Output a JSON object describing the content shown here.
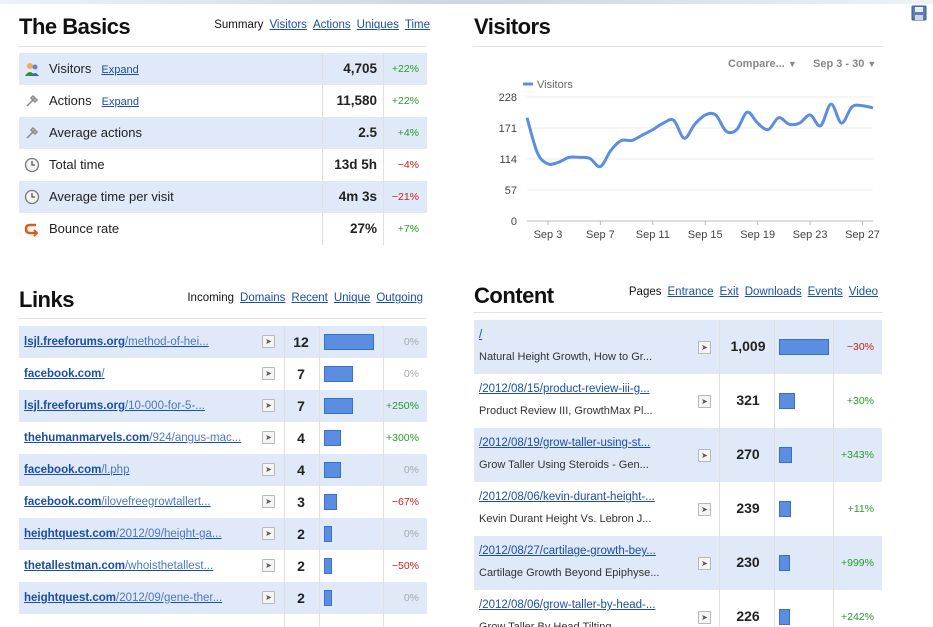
{
  "basics": {
    "title": "The Basics",
    "tabs": [
      {
        "label": "Summary",
        "active": true
      },
      {
        "label": "Visitors",
        "active": false
      },
      {
        "label": "Actions",
        "active": false
      },
      {
        "label": "Uniques",
        "active": false
      },
      {
        "label": "Time",
        "active": false
      }
    ],
    "rows": [
      {
        "label": "Visitors",
        "expand": "Expand",
        "value": "4,705",
        "change": "+22%",
        "icon": "visitors-icon"
      },
      {
        "label": "Actions",
        "expand": "Expand",
        "value": "11,580",
        "change": "+22%",
        "icon": "cursor-icon"
      },
      {
        "label": "Average actions",
        "expand": "",
        "value": "2.5",
        "change": "+4%",
        "icon": "cursor-icon"
      },
      {
        "label": "Total time",
        "expand": "",
        "value": "13d 5h",
        "change": "-4%",
        "icon": "clock-icon"
      },
      {
        "label": "Average time per visit",
        "expand": "",
        "value": "4m 3s",
        "change": "-21%",
        "icon": "clock-icon"
      },
      {
        "label": "Bounce rate",
        "expand": "",
        "value": "27%",
        "change": "+7%",
        "icon": "bounce-icon"
      }
    ]
  },
  "visitors": {
    "title": "Visitors",
    "compare_label": "Compare...",
    "range_label": "Sep 3 - 30"
  },
  "chart_data": {
    "type": "line",
    "series": [
      {
        "name": "Visitors",
        "values": [
          190,
          125,
          105,
          108,
          117,
          117,
          115,
          100,
          130,
          148,
          148,
          158,
          168,
          180,
          185,
          152,
          178,
          195,
          195,
          165,
          168,
          200,
          180,
          168,
          190,
          178,
          180,
          195,
          175,
          215,
          180,
          210,
          212,
          208
        ]
      }
    ],
    "x_tick_labels": [
      "Sep 3",
      "Sep 7",
      "Sep 11",
      "Sep 15",
      "Sep 19",
      "Sep 23",
      "Sep 27"
    ],
    "y_tick_labels": [
      "0",
      "57",
      "114",
      "171",
      "228"
    ],
    "ylim": [
      0,
      228
    ],
    "legend": "top-left",
    "line_color": "#5b8ee0",
    "grid": true
  },
  "links": {
    "title": "Links",
    "tabs": [
      {
        "label": "Incoming",
        "active": true
      },
      {
        "label": "Domains",
        "active": false
      },
      {
        "label": "Recent",
        "active": false
      },
      {
        "label": "Unique",
        "active": false
      },
      {
        "label": "Outgoing",
        "active": false
      }
    ],
    "max": 12,
    "rows": [
      {
        "domain": "lsjl.freeforums.org",
        "path": "/method-of-hei...",
        "count": 12,
        "change": "0%"
      },
      {
        "domain": "facebook.com",
        "path": "/",
        "count": 7,
        "change": "0%"
      },
      {
        "domain": "lsjl.freeforums.org",
        "path": "/10-000-for-5-...",
        "count": 7,
        "change": "+250%"
      },
      {
        "domain": "thehumanmarvels.com",
        "path": "/924/angus-mac...",
        "count": 4,
        "change": "+300%"
      },
      {
        "domain": "facebook.com",
        "path": "/l.php",
        "count": 4,
        "change": "0%"
      },
      {
        "domain": "facebook.com",
        "path": "/ilovefreegrowtallert...",
        "count": 3,
        "change": "-67%"
      },
      {
        "domain": "heightquest.com",
        "path": "/2012/09/height-ga...",
        "count": 2,
        "change": "0%"
      },
      {
        "domain": "thetallestman.com",
        "path": "/whoisthetallest...",
        "count": 2,
        "change": "-50%"
      },
      {
        "domain": "heightquest.com",
        "path": "/2012/09/gene-ther...",
        "count": 2,
        "change": "0%"
      }
    ]
  },
  "content": {
    "title": "Content",
    "tabs": [
      {
        "label": "Pages",
        "active": true
      },
      {
        "label": "Entrance",
        "active": false
      },
      {
        "label": "Exit",
        "active": false
      },
      {
        "label": "Downloads",
        "active": false
      },
      {
        "label": "Events",
        "active": false
      },
      {
        "label": "Video",
        "active": false
      }
    ],
    "max": 1009,
    "rows": [
      {
        "path": "/",
        "title": "Natural Height Growth, How to Gr...",
        "count": 1009,
        "display": "1,009",
        "change": "-30%"
      },
      {
        "path": "/2012/08/15/product-review-iii-g...",
        "title": "Product Review III, GrowthMax Pl...",
        "count": 321,
        "display": "321",
        "change": "+30%"
      },
      {
        "path": "/2012/08/19/grow-taller-using-st...",
        "title": "Grow Taller Using Steroids - Gen...",
        "count": 270,
        "display": "270",
        "change": "+343%"
      },
      {
        "path": "/2012/08/06/kevin-durant-height-...",
        "title": "Kevin Durant Height Vs. Lebron J...",
        "count": 239,
        "display": "239",
        "change": "+11%"
      },
      {
        "path": "/2012/08/27/cartilage-growth-bey...",
        "title": "Cartilage Growth Beyond Epiphyse...",
        "count": 230,
        "display": "230",
        "change": "+999%"
      },
      {
        "path": "/2012/08/06/grow-taller-by-head-...",
        "title": "Grow Taller By Head Tilting",
        "count": 226,
        "display": "226",
        "change": "+242%"
      }
    ]
  }
}
